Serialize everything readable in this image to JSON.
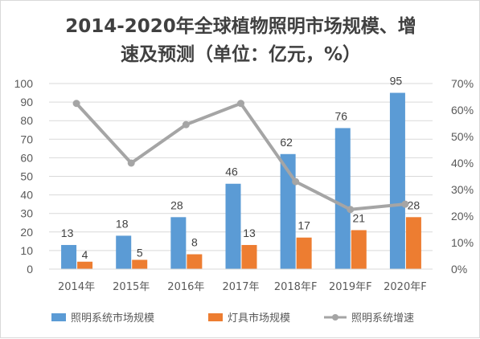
{
  "title_lines": [
    "2014-2020年全球植物照明市场规模、增",
    "速及预测（单位：亿元，%）"
  ],
  "colors": {
    "series_1": "#5b9bd5",
    "series_2": "#ed7d31",
    "series_3": "#a5a5a5",
    "grid": "#d9d9d9"
  },
  "chart_data": {
    "type": "bar",
    "title": "2014-2020年全球植物照明市场规模、增速及预测（单位：亿元，%）",
    "categories": [
      "2014年",
      "2015年",
      "2016年",
      "2017年",
      "2018年F",
      "2019年F",
      "2020年F"
    ],
    "series": [
      {
        "name": "照明系统市场规模",
        "type": "bar",
        "axis": "left",
        "values": [
          13,
          18,
          28,
          46,
          62,
          76,
          95
        ],
        "labels": [
          "13",
          "18",
          "28",
          "46",
          "62",
          "76",
          "95"
        ]
      },
      {
        "name": "灯具市场规模",
        "type": "bar",
        "axis": "left",
        "values": [
          4,
          5,
          8,
          13,
          17,
          21,
          28
        ],
        "labels": [
          "4",
          "5",
          "8",
          "13",
          "17",
          "21",
          "28"
        ]
      },
      {
        "name": "照明系统增速",
        "type": "line",
        "axis": "right",
        "values": [
          62.5,
          40,
          54.5,
          62.5,
          33,
          22.5,
          24.5
        ]
      }
    ],
    "y_left": {
      "ylim": [
        0,
        100
      ],
      "ticks": [
        "0",
        "10",
        "20",
        "30",
        "40",
        "50",
        "60",
        "70",
        "80",
        "90",
        "100"
      ]
    },
    "y_right": {
      "ylim": [
        0,
        70
      ],
      "ticks": [
        "0%",
        "10%",
        "20%",
        "30%",
        "40%",
        "50%",
        "60%",
        "70%"
      ]
    },
    "grid": true,
    "legend_position": "bottom"
  }
}
